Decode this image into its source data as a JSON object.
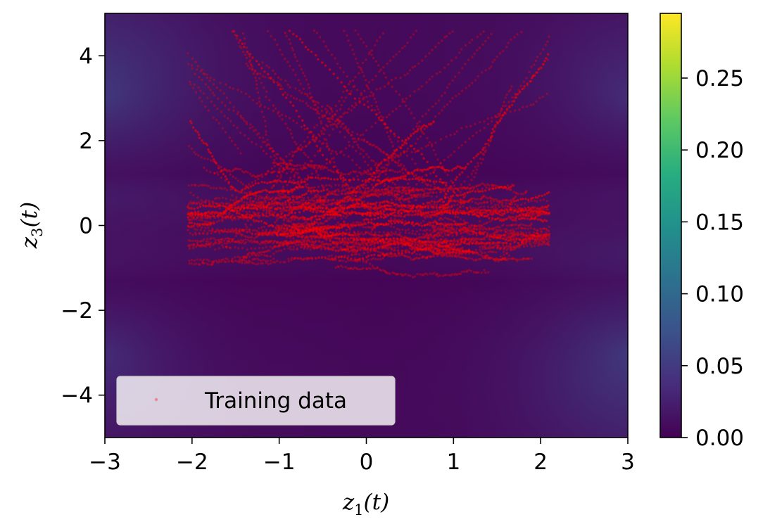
{
  "chart_data": {
    "type": "scatter",
    "title": "",
    "xlabel": "z1(t)",
    "ylabel": "z3(t)",
    "xlim": [
      -3,
      3
    ],
    "ylim": [
      -5,
      5
    ],
    "x_ticks": [
      "−3",
      "−2",
      "−1",
      "0",
      "1",
      "2",
      "3"
    ],
    "y_ticks": [
      "−4",
      "−2",
      "0",
      "2",
      "4"
    ],
    "grid": false,
    "background": {
      "type": "heatmap",
      "colormap": "viridis",
      "description_values": "density field, brighter near corners (top-left and bottom-right ≈ 0.07), darkest along z3≈±0.7 band",
      "bright_spots": [
        {
          "x": -3.0,
          "y": 3.2,
          "value": 0.075
        },
        {
          "x": 3.0,
          "y": -3.2,
          "value": 0.075
        },
        {
          "x": 3.0,
          "y": 3.2,
          "value": 0.05
        },
        {
          "x": -3.0,
          "y": -3.2,
          "value": 0.05
        }
      ]
    },
    "series": [
      {
        "name": "Training data",
        "marker": "dot",
        "color": "#ff0000",
        "points_summary": "many red trajectories concentrated at z1∈[-2,2], z3∈[-2,1.5] with strands up to z3≈4.5"
      }
    ],
    "colorbar": {
      "min": 0.0,
      "max": 0.295,
      "ticks": [
        "0.00",
        "0.05",
        "0.10",
        "0.15",
        "0.20",
        "0.25"
      ],
      "tick_values": [
        0.0,
        0.05,
        0.1,
        0.15,
        0.2,
        0.25
      ]
    },
    "legend": {
      "position": "lower-left",
      "entries": [
        "Training data"
      ]
    }
  }
}
